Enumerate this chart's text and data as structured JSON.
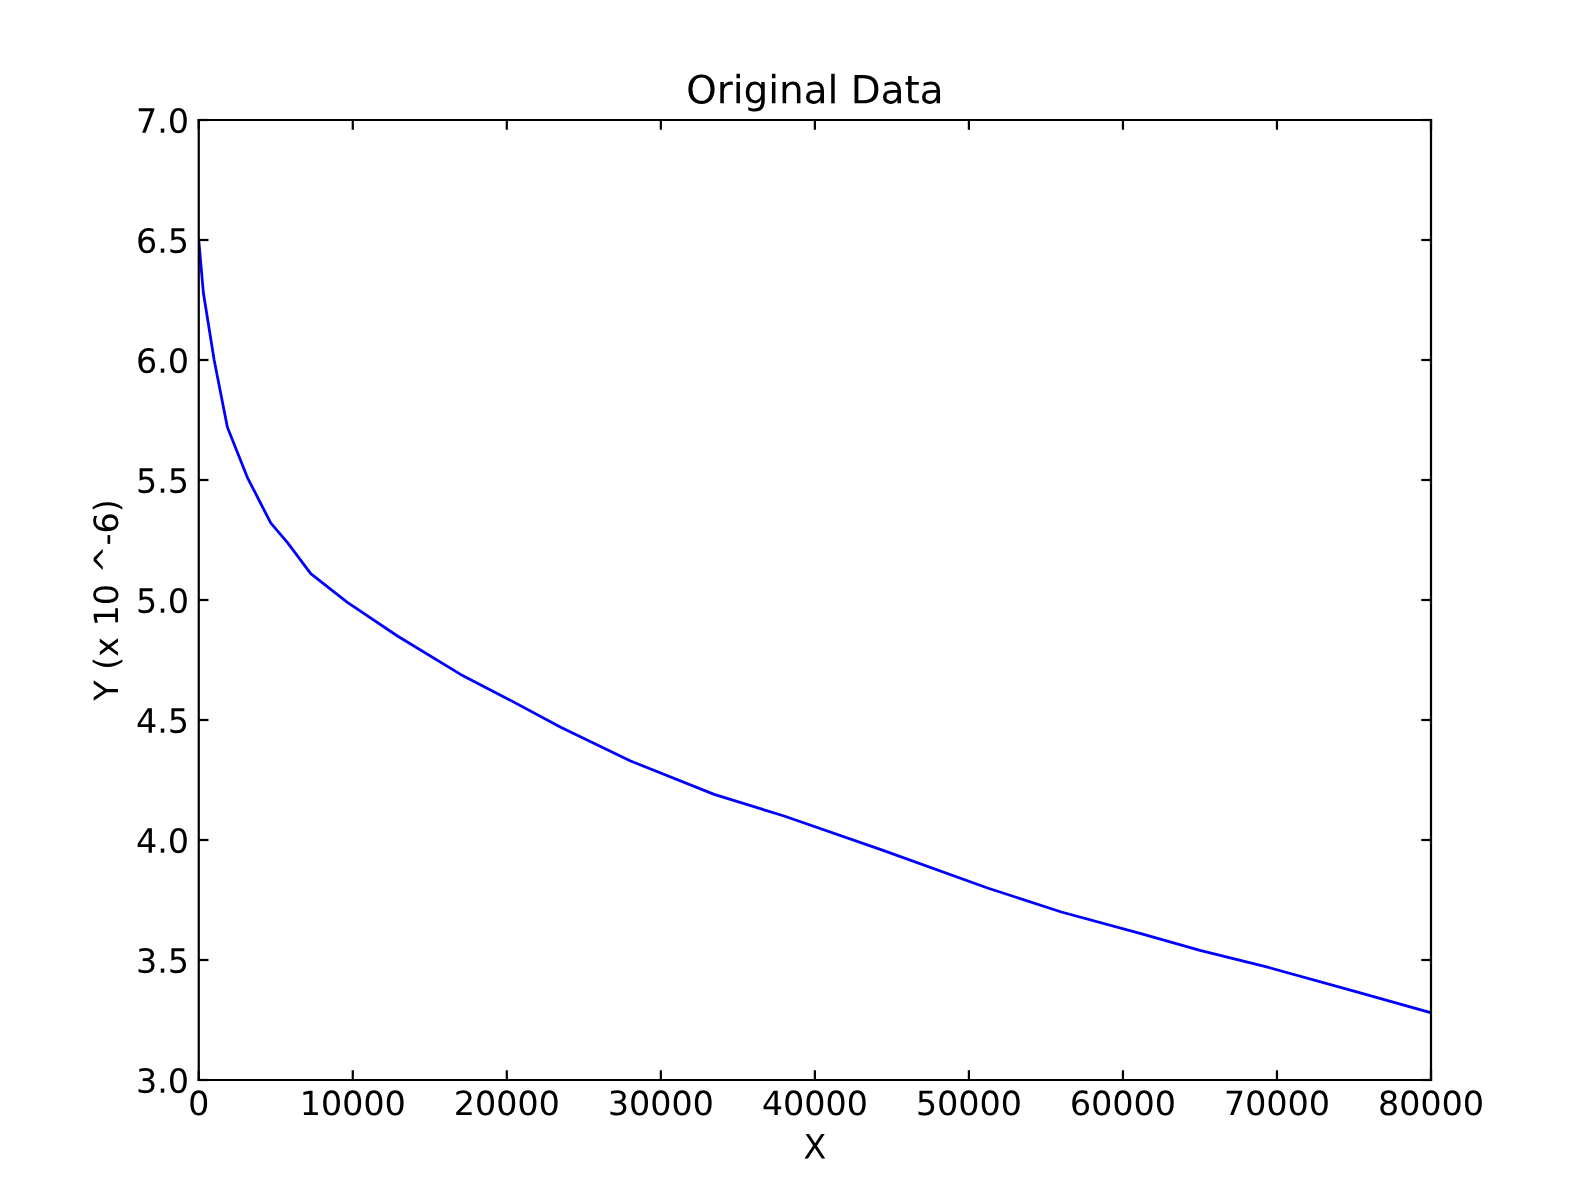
{
  "chart_data": {
    "type": "line",
    "title": "Original Data",
    "xlabel": "X",
    "ylabel": "Y (x 10 ^-6)",
    "x": [
      0,
      300,
      1000,
      1860,
      3160,
      4680,
      5750,
      7270,
      9650,
      12900,
      17000,
      20000,
      23500,
      28000,
      33460,
      38000,
      44290,
      51210,
      56000,
      61170,
      65000,
      69390,
      75000,
      80000
    ],
    "series": [
      {
        "color": "#0000ff",
        "values": [
          6.5,
          6.28,
          6.0,
          5.72,
          5.51,
          5.32,
          5.24,
          5.11,
          4.99,
          4.85,
          4.69,
          4.59,
          4.47,
          4.33,
          4.19,
          4.1,
          3.96,
          3.8,
          3.7,
          3.61,
          3.54,
          3.47,
          3.37,
          3.28
        ]
      }
    ],
    "xlim": [
      0,
      80000
    ],
    "xticks": [
      0,
      10000,
      20000,
      30000,
      40000,
      50000,
      60000,
      70000,
      80000
    ],
    "ylim": [
      3.0,
      7.0
    ],
    "yticks": [
      {
        "value": 3.0,
        "label": "3.0"
      },
      {
        "value": 3.5,
        "label": "3.5"
      },
      {
        "value": 4.0,
        "label": "4.0"
      },
      {
        "value": 4.5,
        "label": "4.5"
      },
      {
        "value": 5.0,
        "label": "5.0"
      },
      {
        "value": 5.5,
        "label": "5.5"
      },
      {
        "value": 6.0,
        "label": "6.0"
      },
      {
        "value": 6.5,
        "label": "6.5"
      },
      {
        "value": 7.0,
        "label": "7.0"
      }
    ],
    "grid": false,
    "legend": false,
    "marker": "none",
    "line_style": "solid"
  }
}
